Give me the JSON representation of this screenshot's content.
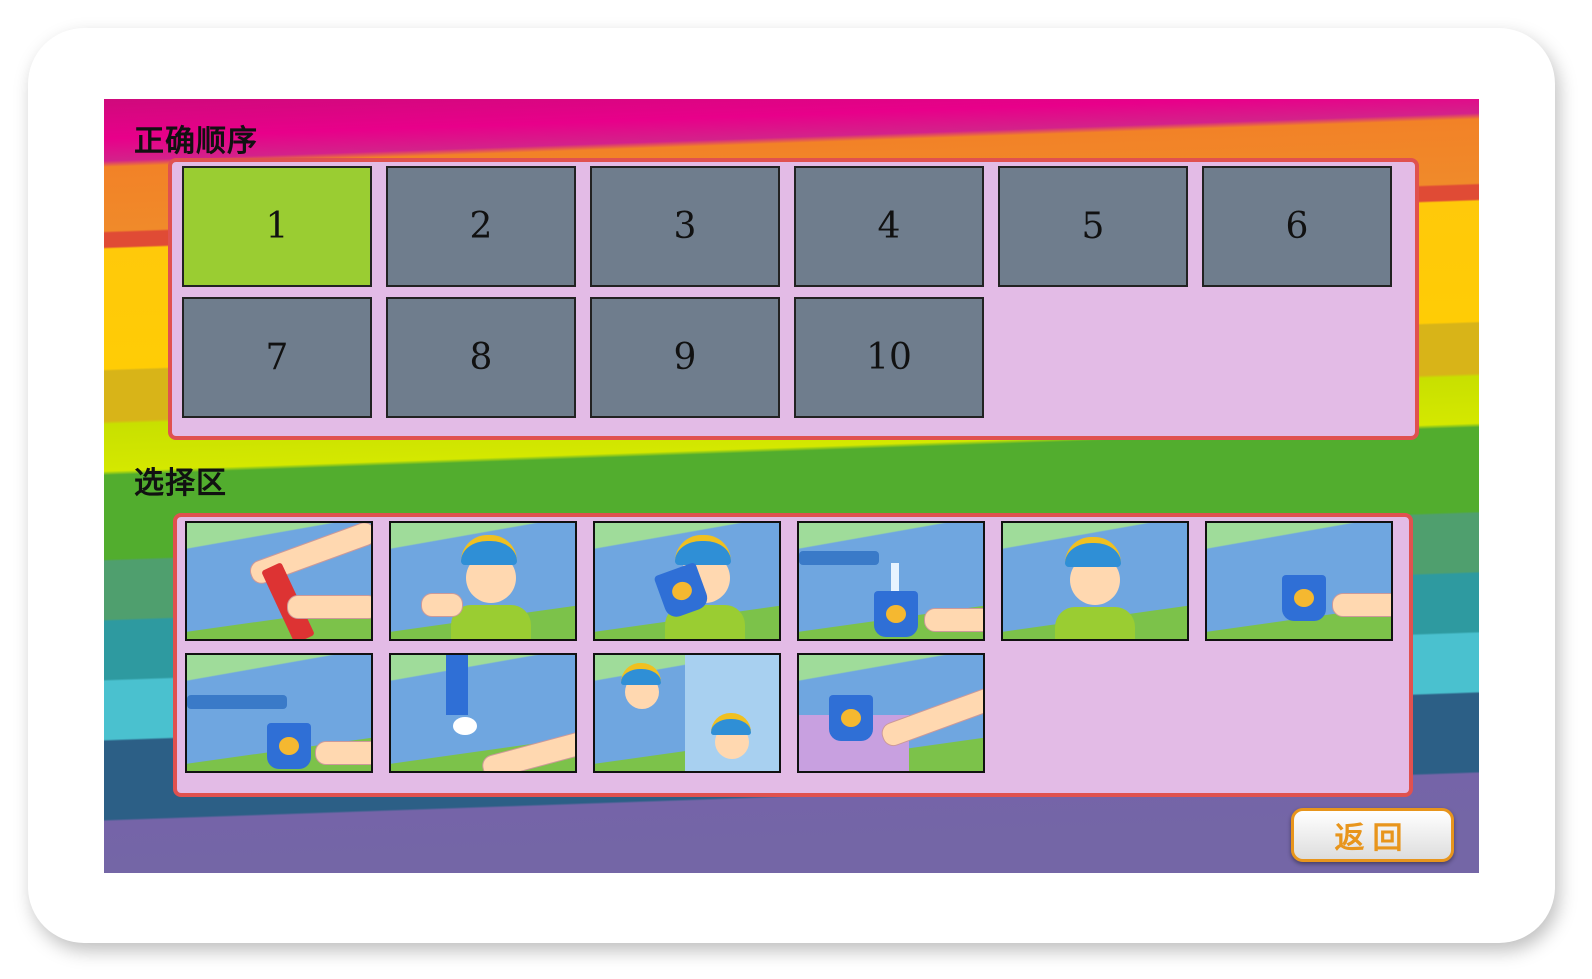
{
  "order_section": {
    "title": "正确顺序",
    "slots": [
      "1",
      "2",
      "3",
      "4",
      "5",
      "6",
      "7",
      "8",
      "9",
      "10"
    ],
    "active_slot": "1"
  },
  "choice_section": {
    "title": "选择区",
    "cards": [
      {
        "icon": "squeeze-toothpaste-image"
      },
      {
        "icon": "boy-holding-toothbrush-image"
      },
      {
        "icon": "boy-drinking-cup-image"
      },
      {
        "icon": "faucet-filling-cup-image"
      },
      {
        "icon": "boy-brushing-teeth-image"
      },
      {
        "icon": "cup-on-sink-image"
      },
      {
        "icon": "faucet-and-cup-image"
      },
      {
        "icon": "toothpaste-on-brush-image"
      },
      {
        "icon": "boy-spitting-water-image"
      },
      {
        "icon": "cup-with-brush-image"
      }
    ]
  },
  "return_button": {
    "label": "返回"
  },
  "colors": {
    "active_slot": "#9acd32",
    "slot": "#6f7d8d",
    "box": "#e3bbe6",
    "border": "#e0514f",
    "button_text": "#e8951c"
  }
}
